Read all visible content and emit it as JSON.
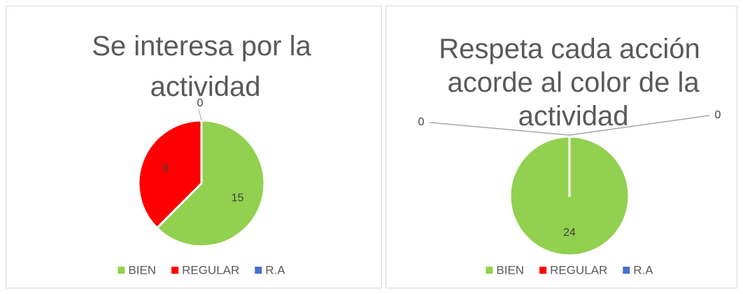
{
  "chart_data": [
    {
      "type": "pie",
      "title": "Se interesa por la actividad",
      "categories": [
        "BIEN",
        "REGULAR",
        "R.A"
      ],
      "values": [
        15,
        9,
        0
      ],
      "colors": [
        "#92d050",
        "#ff0000",
        "#4472c4"
      ],
      "legend": "bottom"
    },
    {
      "type": "pie",
      "title": "Respeta cada acción acorde al color de la actividad",
      "categories": [
        "BIEN",
        "REGULAR",
        "R.A"
      ],
      "values": [
        24,
        0,
        0
      ],
      "colors": [
        "#92d050",
        "#ff0000",
        "#4472c4"
      ],
      "legend": "bottom"
    }
  ]
}
